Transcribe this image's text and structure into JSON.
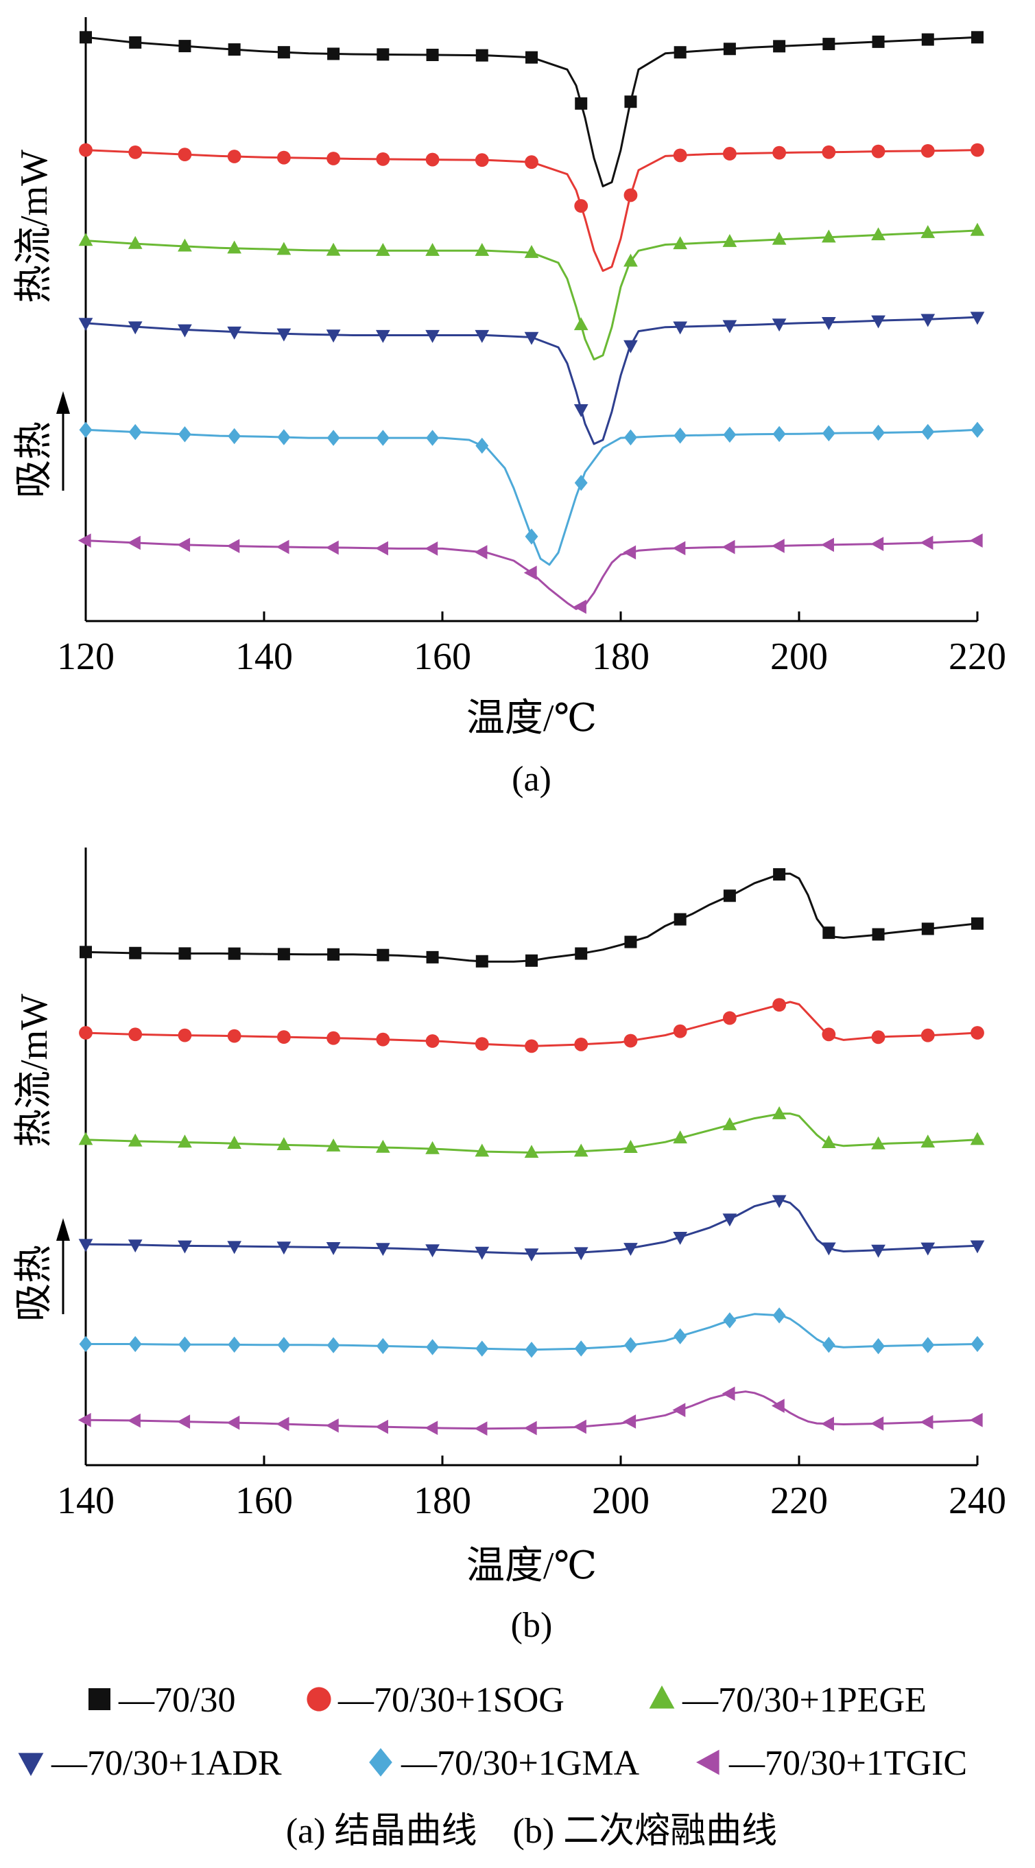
{
  "legend": [
    {
      "label": "—70/30",
      "color": "#111111",
      "marker": "square"
    },
    {
      "label": "—70/30+1SOG",
      "color": "#e53935",
      "marker": "circle"
    },
    {
      "label": "—70/30+1PEGE",
      "color": "#6ab934",
      "marker": "triangle-up"
    },
    {
      "label": "—70/30+1ADR",
      "color": "#2e3f8f",
      "marker": "triangle-down"
    },
    {
      "label": "—70/30+1GMA",
      "color": "#4da9d8",
      "marker": "diamond"
    },
    {
      "label": "—70/30+1TGIC",
      "color": "#a64ca6",
      "marker": "triangle-left"
    }
  ],
  "caption": "(a) 结晶曲线　(b) 二次熔融曲线",
  "chart_data": [
    {
      "type": "line",
      "subcaption": "(a)",
      "xlabel": "温度/℃",
      "ylabel": "热流/mW",
      "annotation": "吸热",
      "xlim": [
        120,
        220
      ],
      "xticks": [
        120,
        140,
        160,
        180,
        200,
        220
      ],
      "ylim": [
        -0.5,
        14.5
      ],
      "grid": false,
      "series": [
        {
          "name": "70/30",
          "color": "#111111",
          "marker": "square",
          "x": [
            120,
            125,
            130,
            135,
            140,
            145,
            150,
            155,
            160,
            165,
            170,
            174,
            175,
            176,
            177,
            178,
            179,
            180,
            181,
            182,
            185,
            190,
            195,
            200,
            205,
            210,
            215,
            220
          ],
          "y": [
            14.0,
            13.88,
            13.8,
            13.72,
            13.65,
            13.6,
            13.58,
            13.57,
            13.56,
            13.55,
            13.5,
            13.2,
            12.8,
            12.0,
            11.0,
            10.3,
            10.4,
            11.2,
            12.3,
            13.2,
            13.6,
            13.68,
            13.75,
            13.8,
            13.85,
            13.9,
            13.95,
            14.0
          ]
        },
        {
          "name": "70/30+1SOG",
          "color": "#e53935",
          "marker": "circle",
          "x": [
            120,
            125,
            130,
            135,
            140,
            145,
            150,
            155,
            160,
            165,
            170,
            174,
            175,
            176,
            177,
            178,
            179,
            180,
            181,
            182,
            185,
            190,
            195,
            200,
            205,
            210,
            215,
            220
          ],
          "y": [
            11.2,
            11.15,
            11.1,
            11.05,
            11.02,
            11.0,
            10.98,
            10.97,
            10.96,
            10.95,
            10.9,
            10.6,
            10.2,
            9.5,
            8.7,
            8.2,
            8.3,
            9.0,
            10.0,
            10.7,
            11.05,
            11.1,
            11.12,
            11.14,
            11.15,
            11.17,
            11.18,
            11.2
          ]
        },
        {
          "name": "70/30+1PEGE",
          "color": "#6ab934",
          "marker": "triangle-up",
          "x": [
            120,
            125,
            130,
            135,
            140,
            145,
            150,
            155,
            160,
            165,
            170,
            173,
            174,
            175,
            176,
            177,
            178,
            179,
            180,
            181,
            182,
            185,
            190,
            195,
            200,
            205,
            210,
            215,
            220
          ],
          "y": [
            8.95,
            8.88,
            8.82,
            8.77,
            8.74,
            8.71,
            8.7,
            8.7,
            8.7,
            8.7,
            8.65,
            8.4,
            8.0,
            7.3,
            6.5,
            6.0,
            6.1,
            6.8,
            7.8,
            8.4,
            8.7,
            8.85,
            8.9,
            8.95,
            9.0,
            9.05,
            9.1,
            9.15,
            9.2
          ]
        },
        {
          "name": "70/30+1ADR",
          "color": "#2e3f8f",
          "marker": "triangle-down",
          "x": [
            120,
            125,
            130,
            135,
            140,
            145,
            150,
            155,
            160,
            165,
            170,
            173,
            174,
            175,
            176,
            177,
            178,
            179,
            180,
            181,
            182,
            185,
            190,
            195,
            200,
            205,
            210,
            215,
            220
          ],
          "y": [
            6.9,
            6.82,
            6.75,
            6.7,
            6.65,
            6.62,
            6.6,
            6.6,
            6.6,
            6.6,
            6.55,
            6.3,
            5.9,
            5.2,
            4.4,
            3.9,
            4.0,
            4.7,
            5.6,
            6.3,
            6.7,
            6.8,
            6.83,
            6.86,
            6.9,
            6.93,
            6.97,
            7.0,
            7.05
          ]
        },
        {
          "name": "70/30+1GMA",
          "color": "#4da9d8",
          "marker": "diamond",
          "x": [
            120,
            125,
            130,
            135,
            140,
            145,
            150,
            155,
            160,
            163,
            165,
            167,
            168,
            169,
            170,
            171,
            172,
            173,
            174,
            175,
            176,
            178,
            180,
            185,
            190,
            195,
            200,
            205,
            210,
            215,
            220
          ],
          "y": [
            4.25,
            4.2,
            4.15,
            4.1,
            4.08,
            4.05,
            4.05,
            4.05,
            4.05,
            4.0,
            3.8,
            3.3,
            2.8,
            2.2,
            1.6,
            1.05,
            0.9,
            1.2,
            1.9,
            2.6,
            3.2,
            3.8,
            4.05,
            4.1,
            4.12,
            4.14,
            4.15,
            4.17,
            4.18,
            4.2,
            4.25
          ]
        },
        {
          "name": "70/30+1TGIC",
          "color": "#a64ca6",
          "marker": "triangle-left",
          "x": [
            120,
            125,
            130,
            135,
            140,
            145,
            150,
            155,
            160,
            165,
            168,
            170,
            172,
            174,
            175,
            176,
            177,
            178,
            179,
            180,
            182,
            185,
            190,
            195,
            200,
            205,
            210,
            215,
            220
          ],
          "y": [
            1.5,
            1.45,
            1.4,
            1.37,
            1.35,
            1.33,
            1.32,
            1.3,
            1.3,
            1.2,
            1.0,
            0.7,
            0.3,
            -0.05,
            -0.2,
            -0.1,
            0.2,
            0.6,
            0.95,
            1.15,
            1.25,
            1.3,
            1.33,
            1.35,
            1.38,
            1.4,
            1.42,
            1.45,
            1.5
          ]
        }
      ]
    },
    {
      "type": "line",
      "subcaption": "(b)",
      "xlabel": "温度/℃",
      "ylabel": "热流/mW",
      "annotation": "吸热",
      "xlim": [
        140,
        240
      ],
      "xticks": [
        140,
        160,
        180,
        200,
        220,
        240
      ],
      "ylim": [
        -0.5,
        12.5
      ],
      "grid": false,
      "series": [
        {
          "name": "70/30",
          "color": "#111111",
          "marker": "square",
          "x": [
            140,
            145,
            150,
            155,
            160,
            165,
            170,
            175,
            180,
            183,
            185,
            188,
            190,
            192,
            195,
            198,
            200,
            203,
            205,
            208,
            210,
            213,
            215,
            218,
            219,
            220,
            221,
            222,
            223,
            224,
            225,
            228,
            230,
            235,
            240
          ],
          "y": [
            10.3,
            10.28,
            10.27,
            10.27,
            10.26,
            10.25,
            10.25,
            10.23,
            10.18,
            10.12,
            10.1,
            10.1,
            10.12,
            10.18,
            10.25,
            10.35,
            10.45,
            10.62,
            10.85,
            11.1,
            11.3,
            11.55,
            11.75,
            11.95,
            11.95,
            11.85,
            11.5,
            11.0,
            10.75,
            10.62,
            10.6,
            10.65,
            10.7,
            10.8,
            10.9
          ]
        },
        {
          "name": "70/30+1SOG",
          "color": "#e53935",
          "marker": "circle",
          "x": [
            140,
            145,
            150,
            155,
            160,
            165,
            170,
            175,
            180,
            185,
            190,
            195,
            200,
            205,
            210,
            213,
            215,
            218,
            219,
            220,
            221,
            222,
            223,
            224,
            225,
            228,
            230,
            235,
            240
          ],
          "y": [
            8.6,
            8.57,
            8.55,
            8.54,
            8.52,
            8.5,
            8.48,
            8.45,
            8.42,
            8.36,
            8.32,
            8.35,
            8.4,
            8.55,
            8.8,
            8.95,
            9.05,
            9.2,
            9.25,
            9.2,
            9.0,
            8.8,
            8.6,
            8.5,
            8.45,
            8.5,
            8.52,
            8.55,
            8.6
          ]
        },
        {
          "name": "70/30+1PEGE",
          "color": "#6ab934",
          "marker": "triangle-up",
          "x": [
            140,
            145,
            150,
            155,
            160,
            165,
            170,
            175,
            180,
            185,
            190,
            195,
            200,
            205,
            210,
            213,
            215,
            218,
            219,
            220,
            221,
            222,
            223,
            224,
            225,
            228,
            230,
            235,
            240
          ],
          "y": [
            6.35,
            6.32,
            6.3,
            6.28,
            6.25,
            6.23,
            6.2,
            6.18,
            6.15,
            6.1,
            6.08,
            6.1,
            6.15,
            6.3,
            6.55,
            6.7,
            6.8,
            6.9,
            6.9,
            6.85,
            6.65,
            6.45,
            6.3,
            6.25,
            6.22,
            6.25,
            6.27,
            6.3,
            6.35
          ]
        },
        {
          "name": "70/30+1ADR",
          "color": "#2e3f8f",
          "marker": "triangle-down",
          "x": [
            140,
            145,
            150,
            155,
            160,
            165,
            170,
            175,
            180,
            185,
            190,
            195,
            200,
            205,
            210,
            213,
            215,
            217,
            218,
            219,
            220,
            221,
            222,
            223,
            224,
            225,
            228,
            230,
            235,
            240
          ],
          "y": [
            4.15,
            4.14,
            4.12,
            4.11,
            4.1,
            4.09,
            4.08,
            4.06,
            4.03,
            3.98,
            3.95,
            3.97,
            4.03,
            4.2,
            4.5,
            4.75,
            4.95,
            5.05,
            5.08,
            5.02,
            4.85,
            4.55,
            4.25,
            4.1,
            4.03,
            4.0,
            4.02,
            4.04,
            4.08,
            4.12
          ]
        },
        {
          "name": "70/30+1GMA",
          "color": "#4da9d8",
          "marker": "diamond",
          "x": [
            140,
            145,
            150,
            155,
            160,
            165,
            170,
            175,
            180,
            185,
            190,
            195,
            200,
            205,
            210,
            213,
            215,
            218,
            219,
            220,
            221,
            222,
            223,
            224,
            225,
            228,
            230,
            235,
            240
          ],
          "y": [
            2.05,
            2.05,
            2.04,
            2.04,
            2.03,
            2.03,
            2.02,
            2.0,
            1.98,
            1.95,
            1.93,
            1.95,
            2.0,
            2.12,
            2.4,
            2.6,
            2.68,
            2.65,
            2.58,
            2.45,
            2.3,
            2.15,
            2.05,
            2.0,
            1.98,
            2.0,
            2.01,
            2.03,
            2.05
          ]
        },
        {
          "name": "70/30+1TGIC",
          "color": "#a64ca6",
          "marker": "triangle-left",
          "x": [
            140,
            145,
            150,
            155,
            160,
            165,
            170,
            175,
            180,
            185,
            190,
            195,
            200,
            205,
            208,
            210,
            212,
            214,
            215,
            216,
            217,
            218,
            219,
            220,
            221,
            222,
            225,
            230,
            235,
            240
          ],
          "y": [
            0.45,
            0.44,
            0.42,
            0.4,
            0.38,
            0.35,
            0.32,
            0.3,
            0.28,
            0.27,
            0.28,
            0.3,
            0.38,
            0.55,
            0.75,
            0.9,
            1.0,
            1.05,
            1.02,
            0.95,
            0.85,
            0.72,
            0.6,
            0.5,
            0.42,
            0.38,
            0.36,
            0.38,
            0.41,
            0.45
          ]
        }
      ]
    }
  ]
}
